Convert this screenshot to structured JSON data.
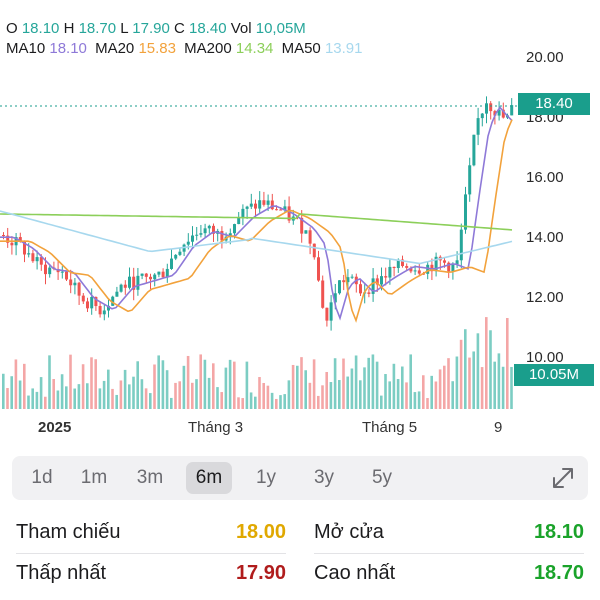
{
  "ohlc": {
    "o_label": "O",
    "o_value": "18.10",
    "h_label": "H",
    "h_value": "18.70",
    "l_label": "L",
    "l_value": "17.90",
    "c_label": "C",
    "c_value": "18.40",
    "vol_label": "Vol",
    "vol_value": "10,05M"
  },
  "ma_legend": [
    {
      "label": "MA10",
      "value": "18.10",
      "color": "#8e79d8"
    },
    {
      "label": "MA20",
      "value": "15.83",
      "color": "#f2a23c"
    },
    {
      "label": "MA200",
      "value": "14.34",
      "color": "#8ccf5a"
    },
    {
      "label": "MA50",
      "value": "13.91",
      "color": "#a7d8ee"
    }
  ],
  "colors": {
    "up": "#26a69a",
    "down": "#ef5350",
    "down_volume": "#f4a6a6",
    "up_volume": "#7ccdc3",
    "accent": "#1a9e8c"
  },
  "price_badge": "18.40",
  "volume_badge": "10.05M",
  "chart_data": {
    "type": "candlestick",
    "y_ticks": [
      "20.00",
      "18.00",
      "16.00",
      "14.00",
      "12.00",
      "10.00"
    ],
    "ylim": [
      9.2,
      20.8
    ],
    "x_ticks": [
      "2025",
      "Tháng 3",
      "Tháng 5",
      "9"
    ],
    "last_close": 18.4,
    "series_names": [
      "MA10",
      "MA20",
      "MA200",
      "MA50"
    ]
  },
  "range_tabs": [
    {
      "label": "1d",
      "active": false
    },
    {
      "label": "1m",
      "active": false
    },
    {
      "label": "3m",
      "active": false
    },
    {
      "label": "6m",
      "active": true
    },
    {
      "label": "1y",
      "active": false
    },
    {
      "label": "3y",
      "active": false
    },
    {
      "label": "5y",
      "active": false
    }
  ],
  "expand_icon": "expand-diagonal-icon",
  "stats": {
    "ref_label": "Tham chiếu",
    "ref_value": "18.00",
    "ref_color": "#e0a800",
    "open_label": "Mở cửa",
    "open_value": "18.10",
    "open_color": "#1aa32a",
    "low_label": "Thấp nhất",
    "low_value": "17.90",
    "low_color": "#b01c1c",
    "high_label": "Cao nhất",
    "high_value": "18.70",
    "high_color": "#1aa32a"
  }
}
